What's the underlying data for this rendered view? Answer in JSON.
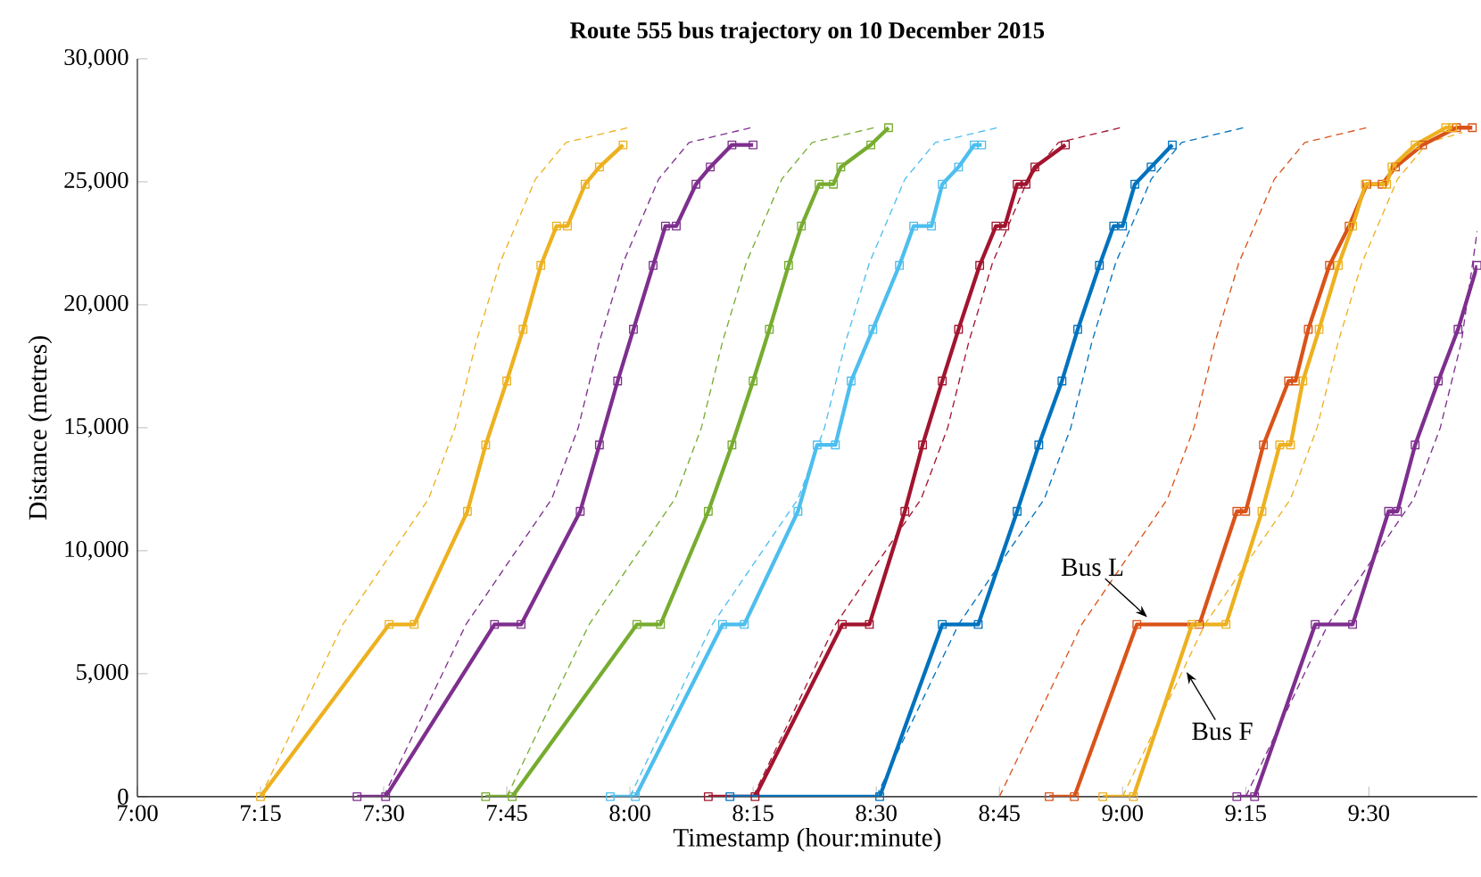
{
  "chart_data": {
    "type": "line",
    "title": "Route 555 bus trajectory on 10 December 2015",
    "xlabel": "Timestamp (hour:minute)",
    "ylabel": "Distance (metres)",
    "xlim": [
      7,
      9.72
    ],
    "ylim": [
      0,
      30000
    ],
    "xticks": [
      {
        "value": 7,
        "label": "7:00"
      },
      {
        "value": 7.25,
        "label": "7:15"
      },
      {
        "value": 7.5,
        "label": "7:30"
      },
      {
        "value": 7.75,
        "label": "7:45"
      },
      {
        "value": 8,
        "label": "8:00"
      },
      {
        "value": 8.25,
        "label": "8:15"
      },
      {
        "value": 8.5,
        "label": "8:30"
      },
      {
        "value": 8.75,
        "label": "8:45"
      },
      {
        "value": 9,
        "label": "9:00"
      },
      {
        "value": 9.25,
        "label": "9:15"
      },
      {
        "value": 9.5,
        "label": "9:30"
      }
    ],
    "yticks": [
      0,
      {
        "value": 5000,
        "label": "5,000"
      },
      {
        "value": 10000,
        "label": "10,000"
      },
      {
        "value": 15000,
        "label": "15,000"
      },
      {
        "value": 20000,
        "label": "20,000"
      },
      {
        "value": 25000,
        "label": "25,000"
      },
      {
        "value": 30000,
        "label": "30,000"
      }
    ],
    "series": [
      {
        "color": "#edb120",
        "line_style": "dashed",
        "marker": "none",
        "x": [
          7.25,
          7.417,
          7.591,
          7.645,
          7.688,
          7.736,
          7.808,
          7.87,
          7.996
        ],
        "values": [
          0,
          7000,
          12100,
          15000,
          18500,
          21700,
          25100,
          26600,
          27200
        ]
      },
      {
        "color": "#7e2f8e",
        "line_style": "dashed",
        "marker": "none",
        "x": [
          7.5,
          7.667,
          7.841,
          7.895,
          7.938,
          7.986,
          8.058,
          8.12,
          8.246
        ],
        "values": [
          0,
          7000,
          12100,
          15000,
          18500,
          21700,
          25100,
          26600,
          27200
        ]
      },
      {
        "color": "#77ac30",
        "line_style": "dashed",
        "marker": "none",
        "x": [
          7.75,
          7.917,
          8.091,
          8.145,
          8.188,
          8.236,
          8.308,
          8.37,
          8.496
        ],
        "values": [
          0,
          7000,
          12100,
          15000,
          18500,
          21700,
          25100,
          26600,
          27200
        ]
      },
      {
        "color": "#4dbeee",
        "line_style": "dashed",
        "marker": "none",
        "x": [
          8.0,
          8.167,
          8.341,
          8.395,
          8.438,
          8.486,
          8.558,
          8.62,
          8.746
        ],
        "values": [
          0,
          7000,
          12100,
          15000,
          18500,
          21700,
          25100,
          26600,
          27200
        ]
      },
      {
        "color": "#a2142f",
        "line_style": "dashed",
        "marker": "none",
        "x": [
          8.25,
          8.417,
          8.591,
          8.645,
          8.688,
          8.736,
          8.808,
          8.87,
          8.996
        ],
        "values": [
          0,
          7000,
          12100,
          15000,
          18500,
          21700,
          25100,
          26600,
          27200
        ]
      },
      {
        "color": "#0072bd",
        "line_style": "dashed",
        "marker": "none",
        "x": [
          8.5,
          8.667,
          8.841,
          8.895,
          8.938,
          8.986,
          9.058,
          9.12,
          9.246
        ],
        "values": [
          0,
          7000,
          12100,
          15000,
          18500,
          21700,
          25100,
          26600,
          27200
        ]
      },
      {
        "color": "#d95319",
        "line_style": "dashed",
        "marker": "none",
        "x": [
          8.75,
          8.917,
          9.091,
          9.145,
          9.188,
          9.236,
          9.308,
          9.37,
          9.496
        ],
        "values": [
          0,
          7000,
          12100,
          15000,
          18500,
          21700,
          25100,
          26600,
          27200
        ]
      },
      {
        "color": "#edb120",
        "line_style": "dashed",
        "marker": "none",
        "x": [
          9.0,
          9.167,
          9.341,
          9.395,
          9.438,
          9.486,
          9.558,
          9.62,
          9.69
        ],
        "values": [
          0,
          7000,
          12100,
          15000,
          18500,
          21700,
          25100,
          26600,
          27000
        ]
      },
      {
        "color": "#7e2f8e",
        "line_style": "dashed",
        "marker": "none",
        "x": [
          9.25,
          9.417,
          9.591,
          9.645,
          9.688,
          9.72
        ],
        "values": [
          0,
          7000,
          12100,
          15000,
          18500,
          23000
        ]
      },
      {
        "color": "#edb120",
        "line_style": "solid",
        "marker": "square",
        "x": [
          7.25,
          7.511,
          7.562,
          7.67,
          7.707,
          7.75,
          7.783,
          7.819,
          7.851,
          7.873,
          7.909,
          7.938,
          7.986
        ],
        "values": [
          0,
          7000,
          7000,
          11600,
          14300,
          16900,
          19000,
          21600,
          23200,
          23200,
          24900,
          25600,
          26500
        ]
      },
      {
        "color": "#7e2f8e",
        "line_style": "solid",
        "marker": "square",
        "x": [
          7.446,
          7.504,
          7.725,
          7.779,
          7.899,
          7.938,
          7.975,
          8.007,
          8.047,
          8.072,
          8.094,
          8.134,
          8.163,
          8.207,
          8.25
        ],
        "values": [
          0,
          0,
          7000,
          7000,
          11600,
          14300,
          16900,
          19000,
          21600,
          23200,
          23200,
          24900,
          25600,
          26500,
          26500
        ]
      },
      {
        "color": "#77ac30",
        "line_style": "solid",
        "marker": "square",
        "x": [
          7.707,
          7.761,
          8.014,
          8.062,
          8.159,
          8.207,
          8.25,
          8.283,
          8.322,
          8.348,
          8.384,
          8.413,
          8.428,
          8.489,
          8.525
        ],
        "values": [
          0,
          0,
          7000,
          7000,
          11600,
          14300,
          16900,
          19000,
          21600,
          23200,
          24900,
          24900,
          25600,
          26500,
          27200
        ]
      },
      {
        "color": "#4dbeee",
        "line_style": "solid",
        "marker": "square",
        "x": [
          7.96,
          8.011,
          8.188,
          8.232,
          8.341,
          8.38,
          8.417,
          8.449,
          8.493,
          8.547,
          8.576,
          8.612,
          8.634,
          8.667,
          8.699,
          8.714
        ],
        "values": [
          0,
          0,
          7000,
          7000,
          11600,
          14300,
          14300,
          16900,
          19000,
          21600,
          23200,
          23200,
          24900,
          25600,
          26500,
          26500
        ]
      },
      {
        "color": "#a2142f",
        "line_style": "solid",
        "marker": "square",
        "x": [
          8.159,
          8.254,
          8.431,
          8.486,
          8.558,
          8.594,
          8.634,
          8.667,
          8.71,
          8.743,
          8.761,
          8.786,
          8.804,
          8.822,
          8.884
        ],
        "values": [
          0,
          0,
          7000,
          7000,
          11600,
          14300,
          16900,
          19000,
          21600,
          23200,
          23200,
          24900,
          24900,
          25600,
          26500
        ]
      },
      {
        "color": "#0072bd",
        "line_style": "solid",
        "marker": "square",
        "x": [
          8.203,
          8.507,
          8.634,
          8.707,
          8.786,
          8.83,
          8.877,
          8.909,
          8.953,
          8.982,
          9.0,
          9.025,
          9.058,
          9.101
        ],
        "values": [
          0,
          0,
          7000,
          7000,
          11600,
          14300,
          16900,
          19000,
          21600,
          23200,
          23200,
          24900,
          25600,
          26500
        ]
      },
      {
        "color": "#d95319",
        "line_style": "solid",
        "marker": "square",
        "x": [
          8.851,
          8.902,
          9.029,
          9.156,
          9.232,
          9.25,
          9.286,
          9.337,
          9.351,
          9.377,
          9.42,
          9.46,
          9.496,
          9.527,
          9.554,
          9.609,
          9.678,
          9.71
        ],
        "values": [
          0,
          0,
          7000,
          7000,
          11600,
          11600,
          14300,
          16900,
          16900,
          19000,
          21600,
          23200,
          24900,
          24900,
          25600,
          26500,
          27200,
          27200
        ]
      },
      {
        "color": "#edb120",
        "line_style": "solid",
        "marker": "square",
        "x": [
          8.96,
          9.022,
          9.141,
          9.21,
          9.283,
          9.319,
          9.341,
          9.366,
          9.399,
          9.438,
          9.467,
          9.493,
          9.536,
          9.547,
          9.594,
          9.656,
          9.67
        ],
        "values": [
          0,
          0,
          7000,
          7000,
          11600,
          14300,
          14300,
          16900,
          19000,
          21600,
          23200,
          24900,
          24900,
          25600,
          26500,
          27200,
          27200
        ]
      },
      {
        "color": "#7e2f8e",
        "line_style": "solid",
        "marker": "square",
        "x": [
          9.232,
          9.268,
          9.391,
          9.467,
          9.54,
          9.558,
          9.594,
          9.641,
          9.681,
          9.72
        ],
        "values": [
          0,
          0,
          7000,
          7000,
          11600,
          11600,
          14300,
          16900,
          19000,
          21600
        ]
      }
    ],
    "annotations": [
      {
        "text": "Bus L",
        "x": 9.05,
        "y": 7300
      },
      {
        "text": "Bus F",
        "x": 9.13,
        "y": 5070
      }
    ]
  }
}
